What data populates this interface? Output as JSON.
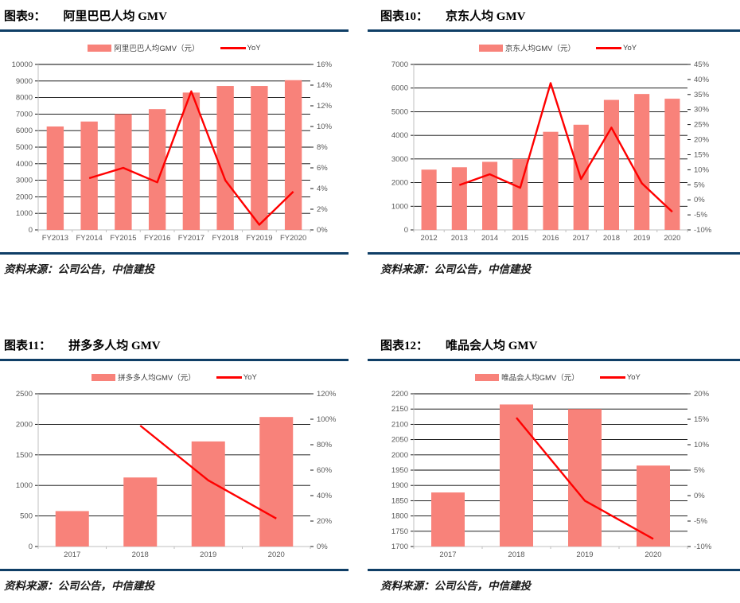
{
  "colors": {
    "bar": "#F8827A",
    "line": "#FF0000",
    "rule": "#0F3E66",
    "grid": "#000000",
    "axis_text": "#595959",
    "axis_line": "#BFBFBF"
  },
  "panels": [
    {
      "title_label": "图表9：",
      "title": "阿里巴巴人均 GMV",
      "legend_bar": "阿里巴巴人均GMV（元）",
      "legend_line": "YoY",
      "source_label": "资料来源：",
      "source_text": "公司公告，中信建投"
    },
    {
      "title_label": "图表10：",
      "title": "京东人均 GMV",
      "legend_bar": "京东人均GMV（元）",
      "legend_line": "YoY",
      "source_label": "资料来源：",
      "source_text": "公司公告，中信建投"
    },
    {
      "title_label": "图表11：",
      "title": "拼多多人均 GMV",
      "legend_bar": "拼多多人均GMV（元）",
      "legend_line": "YoY",
      "source_label": "资料来源：",
      "source_text": "公司公告，中信建投"
    },
    {
      "title_label": "图表12：",
      "title": "唯品会人均 GMV",
      "legend_bar": "唯品会人均GMV（元）",
      "legend_line": "YoY",
      "source_label": "资料来源：",
      "source_text": "公司公告，中信建投"
    }
  ],
  "chart_data": [
    {
      "type": "bar",
      "title": "阿里巴巴人均 GMV",
      "categories": [
        "FY2013",
        "FY2014",
        "FY2015",
        "FY2016",
        "FY2017",
        "FY2018",
        "FY2019",
        "FY2020"
      ],
      "series": [
        {
          "name": "阿里巴巴人均GMV（元）",
          "type": "bar",
          "axis": "left",
          "values": [
            6250,
            6550,
            7000,
            7300,
            8300,
            8700,
            8700,
            9050
          ]
        },
        {
          "name": "YoY",
          "type": "line",
          "axis": "right",
          "values": [
            null,
            5.0,
            6.0,
            4.6,
            13.4,
            4.8,
            0.5,
            3.7
          ]
        }
      ],
      "left_axis": {
        "min": 0,
        "max": 10000,
        "step": 1000
      },
      "right_axis": {
        "min": 0,
        "max": 16,
        "step": 2,
        "suffix": "%"
      },
      "grid": true,
      "legend_position": "top"
    },
    {
      "type": "bar",
      "title": "京东人均 GMV",
      "categories": [
        "2012",
        "2013",
        "2014",
        "2015",
        "2016",
        "2017",
        "2018",
        "2019",
        "2020"
      ],
      "series": [
        {
          "name": "京东人均GMV（元）",
          "type": "bar",
          "axis": "left",
          "values": [
            2550,
            2650,
            2880,
            3000,
            4150,
            4450,
            5500,
            5750,
            5550
          ]
        },
        {
          "name": "YoY",
          "type": "line",
          "axis": "right",
          "values": [
            null,
            4.9,
            8.5,
            4.0,
            38.8,
            6.9,
            24.0,
            5.5,
            -4.0
          ]
        }
      ],
      "left_axis": {
        "min": 0,
        "max": 7000,
        "step": 1000
      },
      "right_axis": {
        "min": -10,
        "max": 45,
        "step": 5,
        "suffix": "%"
      },
      "grid": true,
      "legend_position": "top"
    },
    {
      "type": "bar",
      "title": "拼多多人均 GMV",
      "categories": [
        "2017",
        "2018",
        "2019",
        "2020"
      ],
      "series": [
        {
          "name": "拼多多人均GMV（元）",
          "type": "bar",
          "axis": "left",
          "values": [
            580,
            1130,
            1720,
            2120
          ]
        },
        {
          "name": "YoY",
          "type": "line",
          "axis": "right",
          "values": [
            null,
            95,
            52,
            22
          ]
        }
      ],
      "left_axis": {
        "min": 0,
        "max": 2500,
        "step": 500
      },
      "right_axis": {
        "min": 0,
        "max": 120,
        "step": 20,
        "suffix": "%"
      },
      "grid": true,
      "legend_position": "top"
    },
    {
      "type": "bar",
      "title": "唯品会人均 GMV",
      "categories": [
        "2017",
        "2018",
        "2019",
        "2020"
      ],
      "series": [
        {
          "name": "唯品会人均GMV（元）",
          "type": "bar",
          "axis": "left",
          "values": [
            1877,
            2165,
            2150,
            1965
          ]
        },
        {
          "name": "YoY",
          "type": "line",
          "axis": "right",
          "values": [
            null,
            15.3,
            -1.0,
            -8.5
          ]
        }
      ],
      "left_axis": {
        "min": 1700,
        "max": 2200,
        "step": 50
      },
      "right_axis": {
        "min": -10,
        "max": 20,
        "step": 5,
        "suffix": "%"
      },
      "grid": true,
      "legend_position": "top"
    }
  ]
}
